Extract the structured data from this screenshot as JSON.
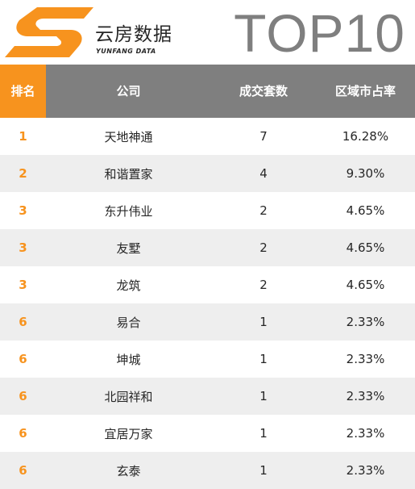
{
  "brand": {
    "name_cn": "云房数据",
    "name_en": "YUNFANG DATA",
    "accent_color": "#f7931e"
  },
  "title": "TOP10",
  "table": {
    "headers": [
      "排名",
      "公司",
      "成交套数",
      "区域市占率"
    ],
    "rows": [
      {
        "rank": "1",
        "company": "天地神通",
        "count": "7",
        "share": "16.28%"
      },
      {
        "rank": "2",
        "company": "和谐置家",
        "count": "4",
        "share": "9.30%"
      },
      {
        "rank": "3",
        "company": "东升伟业",
        "count": "2",
        "share": "4.65%"
      },
      {
        "rank": "3",
        "company": "友墅",
        "count": "2",
        "share": "4.65%"
      },
      {
        "rank": "3",
        "company": "龙筑",
        "count": "2",
        "share": "4.65%"
      },
      {
        "rank": "6",
        "company": "易合",
        "count": "1",
        "share": "2.33%"
      },
      {
        "rank": "6",
        "company": "坤城",
        "count": "1",
        "share": "2.33%"
      },
      {
        "rank": "6",
        "company": "北园祥和",
        "count": "1",
        "share": "2.33%"
      },
      {
        "rank": "6",
        "company": "宜居万家",
        "count": "1",
        "share": "2.33%"
      },
      {
        "rank": "6",
        "company": "玄泰",
        "count": "1",
        "share": "2.33%"
      }
    ]
  }
}
